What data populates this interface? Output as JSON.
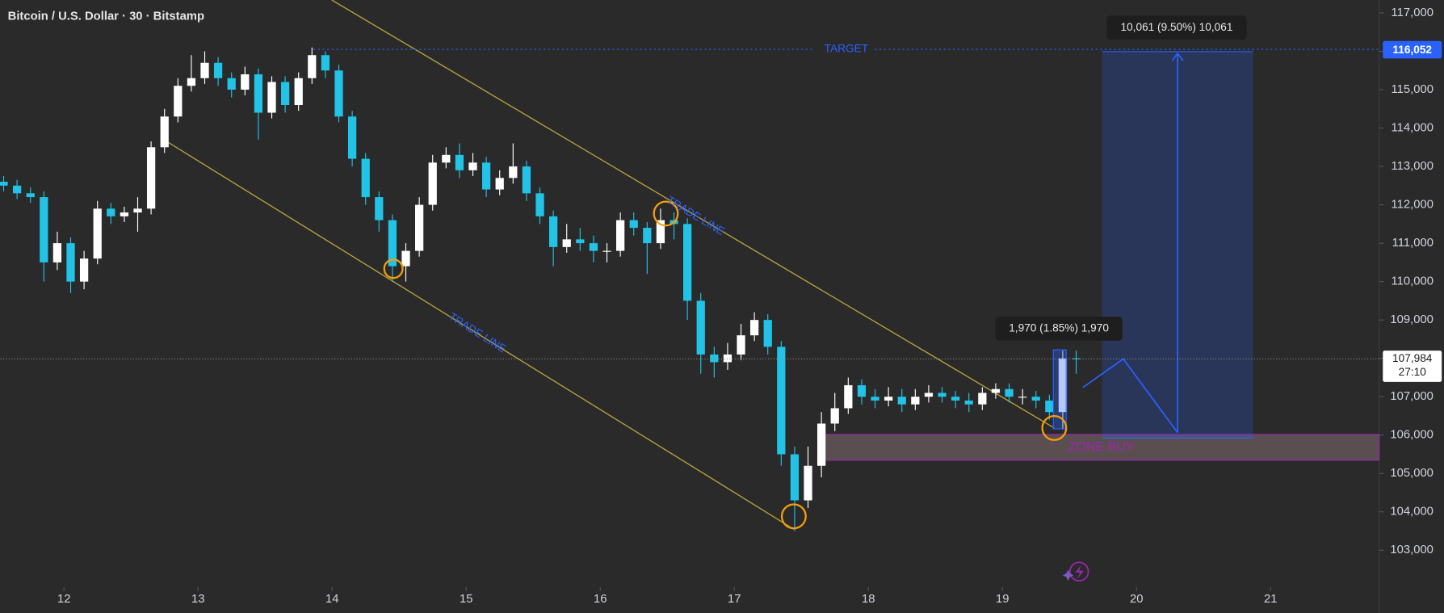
{
  "chart_data": {
    "type": "candlestick",
    "title": "Bitcoin / U.S. Dollar · 30 · Bitstamp",
    "up_color": "#ffffff",
    "down_color": "#22c3e6",
    "x": [
      11.55,
      11.65,
      11.75,
      11.85,
      11.95,
      12.05,
      12.15,
      12.25,
      12.35,
      12.45,
      12.55,
      12.65,
      12.75,
      12.85,
      12.95,
      13.05,
      13.15,
      13.25,
      13.35,
      13.45,
      13.55,
      13.65,
      13.75,
      13.85,
      13.95,
      14.05,
      14.15,
      14.25,
      14.35,
      14.45,
      14.55,
      14.65,
      14.75,
      14.85,
      14.95,
      15.05,
      15.15,
      15.25,
      15.35,
      15.45,
      15.55,
      15.65,
      15.75,
      15.85,
      15.95,
      16.05,
      16.15,
      16.25,
      16.35,
      16.45,
      16.55,
      16.65,
      16.75,
      16.85,
      16.95,
      17.05,
      17.15,
      17.25,
      17.35,
      17.45,
      17.55,
      17.65,
      17.75,
      17.85,
      17.95,
      18.05,
      18.15,
      18.25,
      18.35,
      18.45,
      18.55,
      18.65,
      18.75,
      18.85,
      18.95,
      19.05,
      19.15,
      19.25,
      19.35,
      19.45,
      19.55
    ],
    "open": [
      112600,
      112500,
      112300,
      112200,
      110500,
      111000,
      110000,
      110600,
      111900,
      111700,
      111800,
      111900,
      113500,
      114300,
      115100,
      115300,
      115700,
      115300,
      115000,
      115400,
      114400,
      115200,
      114600,
      115300,
      115900,
      115500,
      114300,
      113200,
      112200,
      111600,
      110400,
      110800,
      112000,
      113100,
      113300,
      112900,
      113100,
      112400,
      112700,
      113000,
      112300,
      111700,
      110900,
      111100,
      111000,
      110800,
      110800,
      111600,
      111400,
      111000,
      111600,
      111500,
      109500,
      108100,
      107900,
      108100,
      108600,
      109000,
      108300,
      105500,
      104300,
      105200,
      106300,
      106700,
      107300,
      107000,
      106900,
      107000,
      106800,
      107000,
      107100,
      107000,
      106900,
      106800,
      107100,
      107200,
      107000,
      107000,
      106900,
      106600,
      108000
    ],
    "high": [
      112750,
      112650,
      112450,
      112350,
      111300,
      111150,
      110800,
      112100,
      112050,
      111950,
      112200,
      113650,
      114500,
      115300,
      115900,
      116000,
      115850,
      115450,
      115600,
      115550,
      115350,
      115350,
      115450,
      116100,
      116000,
      115650,
      114450,
      113350,
      112350,
      111750,
      111000,
      112200,
      113300,
      113500,
      113600,
      113350,
      113250,
      112900,
      113600,
      113150,
      112450,
      111850,
      111500,
      111400,
      111200,
      111000,
      111800,
      111800,
      111550,
      111900,
      111800,
      111650,
      109700,
      108300,
      108400,
      108900,
      109200,
      109150,
      108450,
      105700,
      105700,
      106600,
      107100,
      107500,
      107450,
      107200,
      107250,
      107200,
      107200,
      107300,
      107250,
      107150,
      107100,
      107250,
      107350,
      107350,
      107200,
      107150,
      107050,
      108200,
      108200
    ],
    "low": [
      112350,
      112150,
      112050,
      110000,
      110300,
      109700,
      109800,
      110450,
      111500,
      111550,
      111300,
      111750,
      113350,
      114150,
      114950,
      115150,
      115100,
      114800,
      114850,
      113700,
      114250,
      114400,
      114450,
      115150,
      115300,
      114150,
      113000,
      112000,
      111300,
      110000,
      110000,
      110650,
      111850,
      112950,
      112700,
      112750,
      112200,
      112250,
      112550,
      112100,
      111500,
      110400,
      110750,
      110800,
      110500,
      110500,
      110650,
      111200,
      110200,
      110850,
      111100,
      109000,
      107600,
      107500,
      107700,
      107950,
      108450,
      108100,
      105200,
      103500,
      104100,
      104900,
      106100,
      106550,
      106800,
      106700,
      106750,
      106600,
      106650,
      106850,
      106850,
      106700,
      106600,
      106650,
      106950,
      106850,
      106800,
      106700,
      106400,
      106150,
      107600
    ],
    "close": [
      112500,
      112300,
      112200,
      110500,
      111000,
      110000,
      110600,
      111900,
      111700,
      111800,
      111900,
      113500,
      114300,
      115100,
      115300,
      115700,
      115300,
      115000,
      115400,
      114400,
      115200,
      114600,
      115300,
      115900,
      115500,
      114300,
      113200,
      112200,
      111600,
      110400,
      110800,
      112000,
      113100,
      113300,
      112900,
      113100,
      112400,
      112700,
      113000,
      112300,
      111700,
      110900,
      111100,
      111000,
      110800,
      110800,
      111600,
      111400,
      111000,
      111600,
      111500,
      109500,
      108100,
      107900,
      108100,
      108600,
      109000,
      108300,
      105500,
      104300,
      105200,
      106300,
      106700,
      107300,
      107000,
      106900,
      107000,
      106800,
      107000,
      107100,
      107000,
      106900,
      106800,
      107100,
      107200,
      107000,
      107000,
      106900,
      106600,
      108000,
      107984
    ],
    "xlim": [
      11.526,
      21.81
    ],
    "xticks": [
      12,
      13,
      14,
      15,
      16,
      17,
      18,
      19,
      20,
      21
    ],
    "ylim": [
      101365,
      117336
    ],
    "yticks": [
      {
        "value": 103000,
        "label": "103,000"
      },
      {
        "value": 104000,
        "label": "104,000"
      },
      {
        "value": 105000,
        "label": "105,000"
      },
      {
        "value": 106000,
        "label": "106,000"
      },
      {
        "value": 107000,
        "label": "107,000"
      },
      {
        "value": 108000,
        "label": "108,000"
      },
      {
        "value": 109000,
        "label": "109,000"
      },
      {
        "value": 110000,
        "label": "110,000"
      },
      {
        "value": 111000,
        "label": "111,000"
      },
      {
        "value": 112000,
        "label": "112,000"
      },
      {
        "value": 113000,
        "label": "113,000"
      },
      {
        "value": 114000,
        "label": "114,000"
      },
      {
        "value": 115000,
        "label": "115,000"
      },
      {
        "value": 116000,
        "label": "116,000"
      },
      {
        "value": 117000,
        "label": "117,000"
      }
    ],
    "last_price": {
      "value": 107984,
      "label": "107,984"
    },
    "countdown": "27:10",
    "target": {
      "text": "TARGET",
      "value": 116052,
      "label": "116,052"
    },
    "annotations": [
      "TRADE LINE",
      "TRADE LINE",
      "ZONE BUY"
    ],
    "measures": [
      "10,061 (9.50%) 10,061",
      "1,970 (1.85%) 1,970"
    ]
  }
}
